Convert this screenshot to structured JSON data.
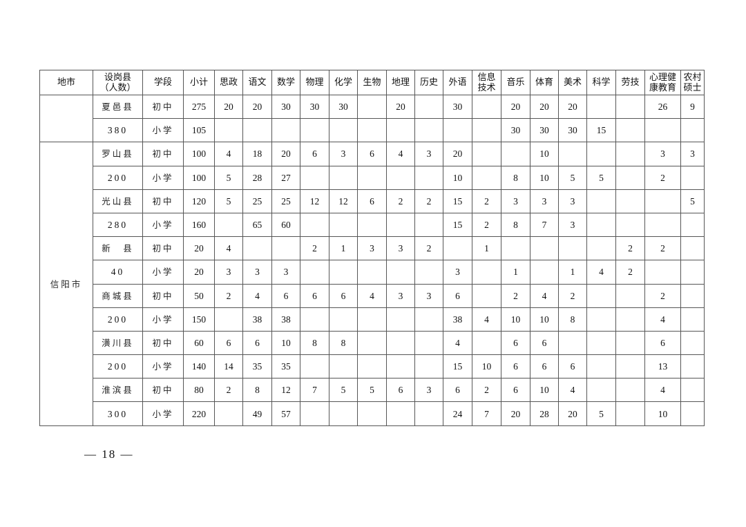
{
  "table": {
    "headers": [
      "地市",
      "设岗县\n（人数）",
      "学段",
      "小计",
      "思政",
      "语文",
      "数学",
      "物理",
      "化学",
      "生物",
      "地理",
      "历史",
      "外语",
      "信息\n技术",
      "音乐",
      "体育",
      "美术",
      "科学",
      "劳技",
      "心理健\n康教育",
      "农村\n硕士"
    ],
    "groups": [
      {
        "city": "",
        "rows": [
          {
            "county": "夏邑县",
            "stage": "初中",
            "values": [
              "275",
              "20",
              "20",
              "30",
              "30",
              "30",
              "",
              "20",
              "",
              "30",
              "",
              "20",
              "20",
              "20",
              "",
              "",
              "26",
              "9"
            ]
          },
          {
            "county": "380",
            "stage": "小学",
            "values": [
              "105",
              "",
              "",
              "",
              "",
              "",
              "",
              "",
              "",
              "",
              "",
              "30",
              "30",
              "30",
              "15",
              "",
              "",
              ""
            ]
          }
        ]
      },
      {
        "city": "信阳市",
        "rows": [
          {
            "county": "罗山县",
            "stage": "初中",
            "values": [
              "100",
              "4",
              "18",
              "20",
              "6",
              "3",
              "6",
              "4",
              "3",
              "20",
              "",
              "",
              "10",
              "",
              "",
              "",
              "3",
              "3"
            ]
          },
          {
            "county": "200",
            "stage": "小学",
            "values": [
              "100",
              "5",
              "28",
              "27",
              "",
              "",
              "",
              "",
              "",
              "10",
              "",
              "8",
              "10",
              "5",
              "5",
              "",
              "2",
              ""
            ]
          },
          {
            "county": "光山县",
            "stage": "初中",
            "values": [
              "120",
              "5",
              "25",
              "25",
              "12",
              "12",
              "6",
              "2",
              "2",
              "15",
              "2",
              "3",
              "3",
              "3",
              "",
              "",
              "",
              "5"
            ]
          },
          {
            "county": "280",
            "stage": "小学",
            "values": [
              "160",
              "",
              "65",
              "60",
              "",
              "",
              "",
              "",
              "",
              "15",
              "2",
              "8",
              "7",
              "3",
              "",
              "",
              "",
              ""
            ]
          },
          {
            "county": "新　县",
            "stage": "初中",
            "values": [
              "20",
              "4",
              "",
              "",
              "2",
              "1",
              "3",
              "3",
              "2",
              "",
              "1",
              "",
              "",
              "",
              "",
              "2",
              "2",
              ""
            ]
          },
          {
            "county": "40",
            "stage": "小学",
            "values": [
              "20",
              "3",
              "3",
              "3",
              "",
              "",
              "",
              "",
              "",
              "3",
              "",
              "1",
              "",
              "1",
              "4",
              "2",
              "",
              ""
            ]
          },
          {
            "county": "商城县",
            "stage": "初中",
            "values": [
              "50",
              "2",
              "4",
              "6",
              "6",
              "6",
              "4",
              "3",
              "3",
              "6",
              "",
              "2",
              "4",
              "2",
              "",
              "",
              "2",
              ""
            ]
          },
          {
            "county": "200",
            "stage": "小学",
            "values": [
              "150",
              "",
              "38",
              "38",
              "",
              "",
              "",
              "",
              "",
              "38",
              "4",
              "10",
              "10",
              "8",
              "",
              "",
              "4",
              ""
            ]
          },
          {
            "county": "潢川县",
            "stage": "初中",
            "values": [
              "60",
              "6",
              "6",
              "10",
              "8",
              "8",
              "",
              "",
              "",
              "4",
              "",
              "6",
              "6",
              "",
              "",
              "",
              "6",
              ""
            ]
          },
          {
            "county": "200",
            "stage": "小学",
            "values": [
              "140",
              "14",
              "35",
              "35",
              "",
              "",
              "",
              "",
              "",
              "15",
              "10",
              "6",
              "6",
              "6",
              "",
              "",
              "13",
              ""
            ]
          },
          {
            "county": "淮滨县",
            "stage": "初中",
            "values": [
              "80",
              "2",
              "8",
              "12",
              "7",
              "5",
              "5",
              "6",
              "3",
              "6",
              "2",
              "6",
              "10",
              "4",
              "",
              "",
              "4",
              ""
            ]
          },
          {
            "county": "300",
            "stage": "小学",
            "values": [
              "220",
              "",
              "49",
              "57",
              "",
              "",
              "",
              "",
              "",
              "24",
              "7",
              "20",
              "28",
              "20",
              "5",
              "",
              "10",
              ""
            ]
          }
        ]
      }
    ]
  },
  "footer": {
    "page_number": "— 18 —"
  }
}
